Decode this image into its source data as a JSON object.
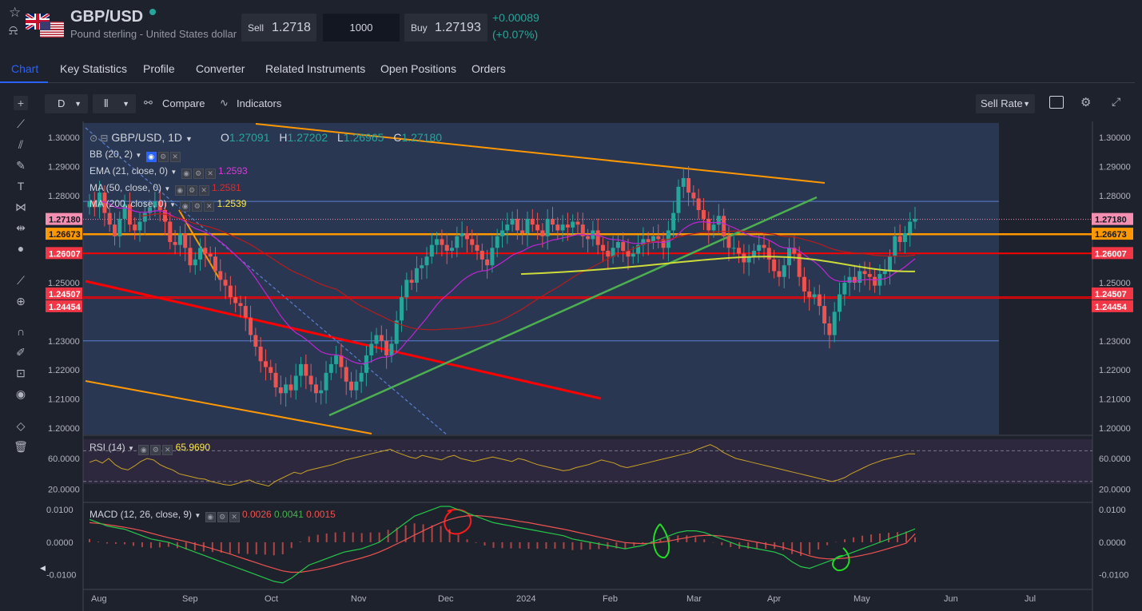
{
  "header": {
    "symbol": "GBP/USD",
    "description": "Pound sterling - United States dollar",
    "sell_label": "Sell",
    "sell_price": "1.2718",
    "quantity": "1000",
    "buy_label": "Buy",
    "buy_price": "1.27193",
    "change": "+0.00089",
    "change_pct": "(+0.07%)"
  },
  "tabs": [
    "Chart",
    "Key Statistics",
    "Profile",
    "Converter",
    "Related Instruments",
    "Open Positions",
    "Orders"
  ],
  "toolbar": {
    "interval": "D",
    "compare": "Compare",
    "indicators": "Indicators",
    "price_type": "Sell Rate"
  },
  "legend": {
    "title": "GBP/USD, 1D",
    "o_label": "O",
    "o": "1.27091",
    "h_label": "H",
    "h": "1.27202",
    "l_label": "L",
    "l": "1.26965",
    "c_label": "C",
    "c": "1.27180",
    "bb": "BB (20, 2)",
    "ema": "EMA (21, close, 0)",
    "ema_val": "1.2593",
    "ma50": "MA (50, close, 0)",
    "ma50_val": "1.2581",
    "ma200": "MA (200, close, 0)",
    "ma200_val": "1.2539",
    "rsi": "RSI (14)",
    "rsi_val": "65.9690",
    "macd": "MACD (12, 26, close, 9)",
    "macd_v1": "0.0026",
    "macd_v2": "0.0041",
    "macd_v3": "0.0015"
  },
  "colors": {
    "up": "#26a69a",
    "down": "#ef5350",
    "ema": "#c026d3",
    "ma50": "#b71c1c",
    "ma200": "#cddc39",
    "orange": "#ff9800",
    "red": "#ff0000",
    "green": "#4caf50",
    "accent": "#2962ff"
  },
  "chart_data": [
    {
      "type": "candlestick",
      "title": "GBP/USD, 1D",
      "x_labels": [
        "Aug",
        "Sep",
        "Oct",
        "Nov",
        "Dec",
        "2024",
        "Feb",
        "Mar",
        "Apr",
        "May",
        "Jun",
        "Jul"
      ],
      "y_ticks": [
        "1.30000",
        "1.29000",
        "1.28000",
        "1.27180",
        "1.26673",
        "1.26007",
        "1.25000",
        "1.24507",
        "1.24454",
        "1.23000",
        "1.22000",
        "1.21000",
        "1.20000"
      ],
      "ylim": [
        1.2,
        1.3
      ],
      "price_labels": [
        {
          "value": "1.27180",
          "color": "#f48fb1"
        },
        {
          "value": "1.26673",
          "color": "#ff9800"
        },
        {
          "value": "1.26007",
          "color": "#f23645"
        },
        {
          "value": "1.24507",
          "color": "#f23645"
        },
        {
          "value": "1.24454",
          "color": "#f23645"
        }
      ],
      "close_series": [
        1.278,
        1.276,
        1.281,
        1.274,
        1.27,
        1.266,
        1.272,
        1.277,
        1.27,
        1.268,
        1.271,
        1.274,
        1.276,
        1.278,
        1.275,
        1.271,
        1.264,
        1.263,
        1.267,
        1.262,
        1.256,
        1.258,
        1.262,
        1.26,
        1.259,
        1.254,
        1.251,
        1.249,
        1.245,
        1.243,
        1.242,
        1.238,
        1.232,
        1.228,
        1.223,
        1.221,
        1.219,
        1.214,
        1.212,
        1.215,
        1.213,
        1.218,
        1.222,
        1.218,
        1.215,
        1.212,
        1.213,
        1.219,
        1.222,
        1.225,
        1.221,
        1.216,
        1.213,
        1.216,
        1.219,
        1.225,
        1.229,
        1.232,
        1.23,
        1.225,
        1.229,
        1.237,
        1.245,
        1.251,
        1.25,
        1.255,
        1.256,
        1.259,
        1.263,
        1.265,
        1.263,
        1.261,
        1.262,
        1.266,
        1.267,
        1.265,
        1.263,
        1.261,
        1.258,
        1.256,
        1.262,
        1.266,
        1.268,
        1.27,
        1.272,
        1.268,
        1.267,
        1.272,
        1.27,
        1.268,
        1.266,
        1.272,
        1.27,
        1.268,
        1.27,
        1.269,
        1.271,
        1.27,
        1.266,
        1.265,
        1.268,
        1.263,
        1.261,
        1.259,
        1.262,
        1.264,
        1.261,
        1.259,
        1.26,
        1.263,
        1.265,
        1.264,
        1.266,
        1.265,
        1.262,
        1.268,
        1.274,
        1.283,
        1.286,
        1.281,
        1.279,
        1.275,
        1.272,
        1.268,
        1.27,
        1.273,
        1.266,
        1.262,
        1.262,
        1.26,
        1.257,
        1.259,
        1.261,
        1.263,
        1.262,
        1.258,
        1.254,
        1.252,
        1.256,
        1.262,
        1.26,
        1.252,
        1.247,
        1.245,
        1.246,
        1.242,
        1.236,
        1.232,
        1.24,
        1.246,
        1.25,
        1.252,
        1.25,
        1.254,
        1.253,
        1.252,
        1.249,
        1.253,
        1.254,
        1.259,
        1.266,
        1.264,
        1.267,
        1.271,
        1.272
      ]
    },
    {
      "type": "line",
      "title": "RSI (14)",
      "y_ticks": [
        "60.0000",
        "20.0000"
      ],
      "ylim": [
        10,
        85
      ],
      "series": [
        {
          "name": "RSI (14)",
          "values": [
            55,
            58,
            54,
            60,
            52,
            47,
            45,
            50,
            56,
            60,
            58,
            52,
            48,
            45,
            40,
            38,
            36,
            34,
            33,
            30,
            28,
            26,
            25,
            27,
            30,
            32,
            28,
            26,
            24,
            30,
            34,
            38,
            42,
            40,
            44,
            46,
            48,
            50,
            52,
            55,
            58,
            60,
            62,
            64,
            66,
            68,
            70,
            72,
            68,
            65,
            62,
            60,
            64,
            62,
            60,
            58,
            62,
            64,
            60,
            58,
            56,
            58,
            60,
            62,
            60,
            58,
            56,
            60,
            58,
            55,
            52,
            50,
            48,
            46,
            44,
            45,
            48,
            50,
            52,
            55,
            58,
            56,
            54,
            50,
            48,
            50,
            52,
            54,
            56,
            58,
            60,
            62,
            64,
            66,
            68,
            72,
            75,
            78,
            74,
            68,
            64,
            60,
            58,
            56,
            54,
            52,
            50,
            48,
            46,
            44,
            42,
            40,
            38,
            36,
            34,
            32,
            30,
            32,
            35,
            40,
            44,
            48,
            52,
            55,
            58,
            60,
            62,
            64,
            66,
            66
          ]
        }
      ]
    },
    {
      "type": "line",
      "title": "MACD (12, 26, close, 9)",
      "y_ticks": [
        "0.0100",
        "0.0000",
        "-0.0100"
      ],
      "ylim": [
        -0.0135,
        0.0115
      ],
      "series": [
        {
          "name": "MACD",
          "values": [
            0.007,
            0.006,
            0.005,
            0.0045,
            0.004,
            0.003,
            0.002,
            0.001,
            0.0005,
            0.0,
            -0.001,
            -0.002,
            -0.003,
            -0.004,
            -0.005,
            -0.006,
            -0.007,
            -0.008,
            -0.009,
            -0.01,
            -0.011,
            -0.012,
            -0.0125,
            -0.011,
            -0.009,
            -0.007,
            -0.006,
            -0.005,
            -0.004,
            -0.003,
            -0.0025,
            -0.002,
            -0.001,
            0.0,
            0.002,
            0.004,
            0.006,
            0.008,
            0.009,
            0.01,
            0.011,
            0.011,
            0.01,
            0.009,
            0.008,
            0.007,
            0.006,
            0.0055,
            0.005,
            0.0045,
            0.004,
            0.0035,
            0.003,
            0.0025,
            0.002,
            0.001,
            0.0005,
            0.0,
            -0.0005,
            -0.001,
            -0.0015,
            -0.002,
            -0.0015,
            -0.001,
            0.0,
            0.001,
            0.002,
            0.003,
            0.0035,
            0.0035,
            0.003,
            0.002,
            0.001,
            0.0,
            -0.001,
            -0.0015,
            -0.002,
            -0.0025,
            -0.003,
            -0.004,
            -0.006,
            -0.0075,
            -0.008,
            -0.007,
            -0.006,
            -0.005,
            -0.004,
            -0.003,
            -0.002,
            -0.001,
            0.0,
            0.001,
            0.002,
            0.003,
            0.0041
          ]
        },
        {
          "name": "Signal",
          "values": [
            0.006,
            0.0058,
            0.0054,
            0.005,
            0.0046,
            0.0041,
            0.0035,
            0.0028,
            0.0021,
            0.0014,
            0.0008,
            0.0002,
            -0.0005,
            -0.0012,
            -0.002,
            -0.0028,
            -0.0036,
            -0.0045,
            -0.0054,
            -0.0063,
            -0.0072,
            -0.008,
            -0.0088,
            -0.0092,
            -0.0092,
            -0.0088,
            -0.0083,
            -0.0077,
            -0.007,
            -0.0062,
            -0.0055,
            -0.0048,
            -0.004,
            -0.003,
            -0.0018,
            -0.0005,
            0.0008,
            0.0022,
            0.0035,
            0.0048,
            0.006,
            0.007,
            0.0077,
            0.0081,
            0.0082,
            0.008,
            0.0077,
            0.0073,
            0.0069,
            0.0064,
            0.006,
            0.0055,
            0.005,
            0.0045,
            0.004,
            0.0034,
            0.0028,
            0.0022,
            0.0016,
            0.001,
            0.0004,
            -0.0001,
            -0.0003,
            -0.0004,
            -0.0003,
            0.0,
            0.0004,
            0.0009,
            0.0014,
            0.0019,
            0.0021,
            0.0021,
            0.0019,
            0.0015,
            0.001,
            0.0005,
            0.0,
            -0.0005,
            -0.001,
            -0.0016,
            -0.0024,
            -0.0033,
            -0.0042,
            -0.0048,
            -0.0051,
            -0.0051,
            -0.0049,
            -0.0045,
            -0.004,
            -0.0034,
            -0.0027,
            -0.0019,
            -0.0011,
            -0.0003,
            0.0026
          ]
        }
      ]
    }
  ]
}
